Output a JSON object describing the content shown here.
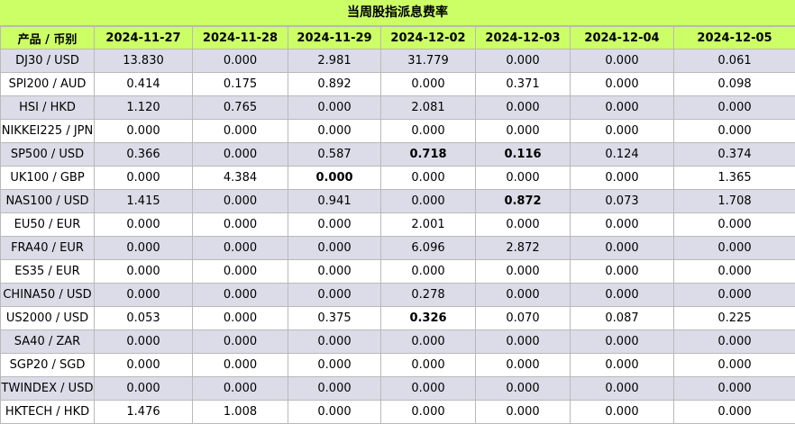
{
  "title": "当周股指派息费率",
  "header": {
    "product": "产品 / 币别",
    "dates": [
      "2024-11-27",
      "2024-11-28",
      "2024-11-29",
      "2024-12-02",
      "2024-12-03",
      "2024-12-04",
      "2024-12-05"
    ]
  },
  "rows": [
    {
      "name": "DJ30 / USD",
      "values": [
        "13.830",
        "0.000",
        "2.981",
        "31.779",
        "0.000",
        "0.000",
        "0.061"
      ],
      "bold": []
    },
    {
      "name": "SPI200 / AUD",
      "values": [
        "0.414",
        "0.175",
        "0.892",
        "0.000",
        "0.371",
        "0.000",
        "0.098"
      ],
      "bold": []
    },
    {
      "name": "HSI / HKD",
      "values": [
        "1.120",
        "0.765",
        "0.000",
        "2.081",
        "0.000",
        "0.000",
        "0.000"
      ],
      "bold": []
    },
    {
      "name": "NIKKEI225 / JPN",
      "values": [
        "0.000",
        "0.000",
        "0.000",
        "0.000",
        "0.000",
        "0.000",
        "0.000"
      ],
      "bold": []
    },
    {
      "name": "SP500 / USD",
      "values": [
        "0.366",
        "0.000",
        "0.587",
        "0.718",
        "0.116",
        "0.124",
        "0.374"
      ],
      "bold": [
        3,
        4
      ]
    },
    {
      "name": "UK100 / GBP",
      "values": [
        "0.000",
        "4.384",
        "0.000",
        "0.000",
        "0.000",
        "0.000",
        "1.365"
      ],
      "bold": [
        2
      ]
    },
    {
      "name": "NAS100 / USD",
      "values": [
        "1.415",
        "0.000",
        "0.941",
        "0.000",
        "0.872",
        "0.073",
        "1.708"
      ],
      "bold": [
        4
      ]
    },
    {
      "name": "EU50 / EUR",
      "values": [
        "0.000",
        "0.000",
        "0.000",
        "2.001",
        "0.000",
        "0.000",
        "0.000"
      ],
      "bold": []
    },
    {
      "name": "FRA40 / EUR",
      "values": [
        "0.000",
        "0.000",
        "0.000",
        "6.096",
        "2.872",
        "0.000",
        "0.000"
      ],
      "bold": []
    },
    {
      "name": "ES35 / EUR",
      "values": [
        "0.000",
        "0.000",
        "0.000",
        "0.000",
        "0.000",
        "0.000",
        "0.000"
      ],
      "bold": []
    },
    {
      "name": "CHINA50 / USD",
      "values": [
        "0.000",
        "0.000",
        "0.000",
        "0.278",
        "0.000",
        "0.000",
        "0.000"
      ],
      "bold": []
    },
    {
      "name": "US2000 / USD",
      "values": [
        "0.053",
        "0.000",
        "0.375",
        "0.326",
        "0.070",
        "0.087",
        "0.225"
      ],
      "bold": [
        3
      ]
    },
    {
      "name": "SA40 / ZAR",
      "values": [
        "0.000",
        "0.000",
        "0.000",
        "0.000",
        "0.000",
        "0.000",
        "0.000"
      ],
      "bold": []
    },
    {
      "name": "SGP20 / SGD",
      "values": [
        "0.000",
        "0.000",
        "0.000",
        "0.000",
        "0.000",
        "0.000",
        "0.000"
      ],
      "bold": []
    },
    {
      "name": "TWINDEX / USD",
      "values": [
        "0.000",
        "0.000",
        "0.000",
        "0.000",
        "0.000",
        "0.000",
        "0.000"
      ],
      "bold": []
    },
    {
      "name": "HKTECH / HKD",
      "values": [
        "1.476",
        "1.008",
        "0.000",
        "0.000",
        "0.000",
        "0.000",
        "0.000"
      ],
      "bold": []
    }
  ],
  "colors": {
    "header_bg": "#ccff66",
    "stripe_bg": "#dcdce8",
    "border": "#b9b9b9"
  }
}
